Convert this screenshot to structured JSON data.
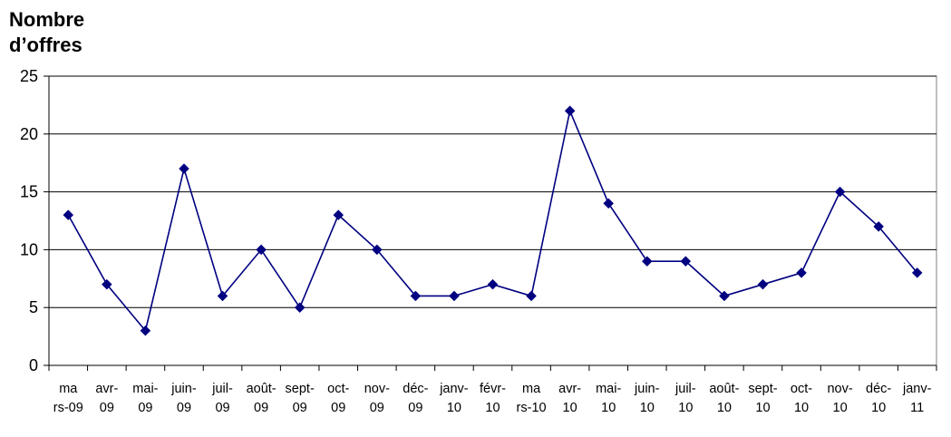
{
  "chart_data": {
    "type": "line",
    "title": "",
    "xlabel": "",
    "ylabel_lines": [
      "Nombre",
      "d’offres"
    ],
    "ylim": [
      0,
      25
    ],
    "yticks": [
      0,
      5,
      10,
      15,
      20,
      25
    ],
    "grid": true,
    "legend": "none",
    "categories": [
      [
        "ma",
        "rs-09"
      ],
      [
        "avr-",
        "09"
      ],
      [
        "mai-",
        "09"
      ],
      [
        "juin-",
        "09"
      ],
      [
        "juil-",
        "09"
      ],
      [
        "août-",
        "09"
      ],
      [
        "sept-",
        "09"
      ],
      [
        "oct-",
        "09"
      ],
      [
        "nov-",
        "09"
      ],
      [
        "déc-",
        "09"
      ],
      [
        "janv-",
        "10"
      ],
      [
        "févr-",
        "10"
      ],
      [
        "ma",
        "rs-10"
      ],
      [
        "avr-",
        "10"
      ],
      [
        "mai-",
        "10"
      ],
      [
        "juin-",
        "10"
      ],
      [
        "juil-",
        "10"
      ],
      [
        "août-",
        "10"
      ],
      [
        "sept-",
        "10"
      ],
      [
        "oct-",
        "10"
      ],
      [
        "nov-",
        "10"
      ],
      [
        "déc-",
        "10"
      ],
      [
        "janv-",
        "11"
      ]
    ],
    "series": [
      {
        "color": "#000080",
        "marker": "diamond",
        "values": [
          13,
          7,
          3,
          17,
          6,
          10,
          5,
          13,
          10,
          6,
          6,
          7,
          6,
          22,
          14,
          9,
          9,
          6,
          7,
          8,
          15,
          12,
          8
        ]
      }
    ]
  }
}
